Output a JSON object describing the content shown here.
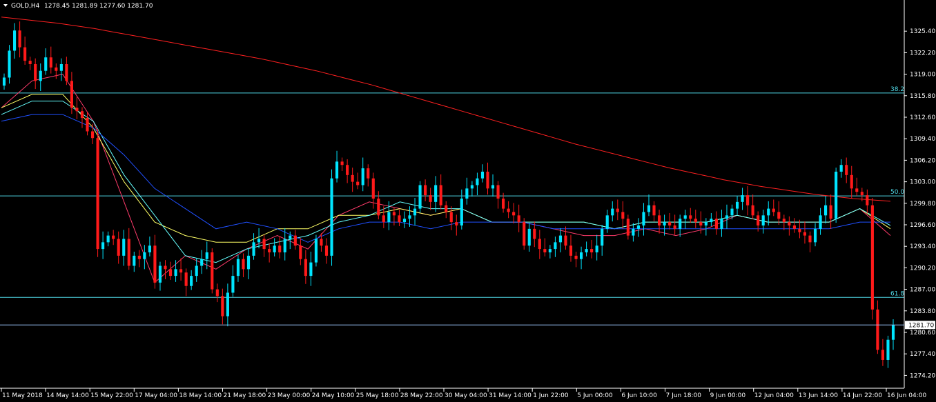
{
  "header": {
    "symbol": "GOLD,H4",
    "ohlc": "1278.45 1281.89 1277.60 1281.70"
  },
  "colors": {
    "background": "#000000",
    "bull": "#00e5ff",
    "bear": "#ff1a1a",
    "axis": "#ffffff",
    "fibo": "#4fd8e6",
    "ma_slow": "#ff2020",
    "ma_pink": "#ff3b6b",
    "ma_yellow": "#ffff66",
    "ma_cyan": "#66ffff",
    "ma_blue": "#2050ff",
    "price_line": "#a0c8ff"
  },
  "chart_data": {
    "type": "candlestick",
    "ylim": [
      1272.6,
      1328.6
    ],
    "y_ticks": [
      "1325.40",
      "1322.20",
      "1319.00",
      "1315.80",
      "1312.60",
      "1309.40",
      "1306.20",
      "1303.00",
      "1299.80",
      "1296.60",
      "1293.40",
      "1290.20",
      "1287.00",
      "1283.80",
      "1280.60",
      "1277.40",
      "1274.20"
    ],
    "x_ticks": [
      "11 May 2018",
      "14 May 14:00",
      "15 May 22:00",
      "17 May 04:00",
      "18 May 14:00",
      "21 May 18:00",
      "23 May 00:00",
      "24 May 10:00",
      "25 May 18:00",
      "28 May 22:00",
      "30 May 04:00",
      "31 May 14:00",
      "1 Jun 22:00",
      "5 Jun 00:00",
      "6 Jun 10:00",
      "7 Jun 18:00",
      "9 Jun 00:00",
      "12 Jun 04:00",
      "13 Jun 14:00",
      "14 Jun 22:00",
      "16 Jun 04:00"
    ],
    "current_price": "1281.70",
    "fibonacci_levels": [
      {
        "label": "38.2",
        "price": 1316.2
      },
      {
        "label": "50.0",
        "price": 1300.9
      },
      {
        "label": "61.8",
        "price": 1285.8
      }
    ],
    "candles_close": [
      1318.5,
      1322.5,
      1325.5,
      1323.0,
      1321.0,
      1320.5,
      1318.0,
      1319.5,
      1321.5,
      1320.0,
      1319.5,
      1320.5,
      1318.0,
      1314.0,
      1313.5,
      1312.5,
      1310.5,
      1309.5,
      1293.0,
      1294.0,
      1295.0,
      1294.5,
      1292.0,
      1294.5,
      1290.5,
      1292.0,
      1291.5,
      1292.5,
      1293.5,
      1288.0,
      1290.5,
      1290.0,
      1289.0,
      1290.0,
      1289.5,
      1287.5,
      1289.0,
      1290.5,
      1291.5,
      1292.5,
      1287.0,
      1286.0,
      1283.0,
      1286.5,
      1289.0,
      1291.5,
      1290.0,
      1292.0,
      1294.0,
      1294.5,
      1293.0,
      1292.5,
      1293.5,
      1292.5,
      1294.5,
      1295.0,
      1293.5,
      1291.5,
      1289.0,
      1291.0,
      1294.5,
      1293.5,
      1292.0,
      1303.5,
      1306.0,
      1305.5,
      1304.0,
      1303.0,
      1302.5,
      1305.0,
      1303.5,
      1300.5,
      1298.0,
      1297.0,
      1298.5,
      1298.0,
      1297.0,
      1297.5,
      1298.0,
      1299.0,
      1302.5,
      1301.0,
      1300.0,
      1302.5,
      1299.5,
      1298.5,
      1297.0,
      1296.5,
      1300.5,
      1302.0,
      1302.5,
      1303.5,
      1304.5,
      1302.0,
      1302.5,
      1300.5,
      1299.0,
      1298.5,
      1298.0,
      1297.0,
      1293.5,
      1296.0,
      1294.5,
      1293.0,
      1292.5,
      1293.0,
      1294.0,
      1295.0,
      1293.5,
      1292.0,
      1291.5,
      1292.5,
      1293.0,
      1292.5,
      1293.5,
      1296.0,
      1298.0,
      1299.0,
      1298.5,
      1297.5,
      1295.0,
      1296.0,
      1296.5,
      1298.5,
      1299.5,
      1298.0,
      1296.5,
      1297.0,
      1296.5,
      1296.0,
      1297.5,
      1298.0,
      1297.5,
      1297.0,
      1296.5,
      1297.0,
      1297.5,
      1296.0,
      1297.5,
      1298.0,
      1299.0,
      1300.0,
      1301.0,
      1299.5,
      1298.0,
      1296.5,
      1298.0,
      1299.0,
      1298.5,
      1297.5,
      1297.0,
      1296.5,
      1296.0,
      1295.5,
      1295.0,
      1294.0,
      1296.0,
      1298.0,
      1299.5,
      1297.5,
      1304.5,
      1305.5,
      1304.0,
      1302.0,
      1301.5,
      1301.0,
      1299.5,
      1284.0,
      1278.0,
      1276.5,
      1279.5,
      1281.7
    ],
    "series": [
      {
        "name": "",
        "color": "#ff2020",
        "values": [
          1327.5,
          1327.2,
          1326.9,
          1326.6,
          1326.2,
          1325.8,
          1325.3,
          1324.8,
          1324.3,
          1323.8,
          1323.3,
          1322.8,
          1322.3,
          1321.8,
          1321.3,
          1320.7,
          1320.1,
          1319.5,
          1318.8,
          1318.1,
          1317.4,
          1316.6,
          1315.8,
          1315.0,
          1314.2,
          1313.4,
          1312.6,
          1311.8,
          1311.0,
          1310.2,
          1309.4,
          1308.6,
          1307.9,
          1307.2,
          1306.5,
          1305.8,
          1305.1,
          1304.5,
          1303.9,
          1303.3,
          1302.8,
          1302.3,
          1301.9,
          1301.5,
          1301.1,
          1300.8,
          1300.5,
          1300.3,
          1300.1
        ]
      },
      {
        "name": "",
        "color": "#ff3b6b",
        "values": [
          1314,
          1318,
          1319,
          1312,
          1300,
          1288,
          1292,
          1290,
          1293,
          1295,
          1293,
          1298,
          1300,
          1299,
          1298,
          1299,
          1297,
          1297,
          1296,
          1295,
          1295,
          1296,
          1295,
          1296,
          1298,
          1297,
          1297,
          1297,
          1299,
          1295
        ]
      },
      {
        "name": "",
        "color": "#ffff66",
        "values": [
          1314,
          1316,
          1316,
          1311,
          1303,
          1297,
          1295,
          1294,
          1294,
          1296,
          1296,
          1298,
          1298,
          1299,
          1298,
          1299,
          1297,
          1297,
          1297,
          1297,
          1296,
          1297,
          1297,
          1297,
          1298,
          1297,
          1297,
          1297,
          1299,
          1296
        ]
      },
      {
        "name": "",
        "color": "#66ffff",
        "values": [
          1313,
          1315,
          1315,
          1312,
          1304,
          1298,
          1292,
          1291,
          1293,
          1294,
          1295,
          1297,
          1298,
          1300,
          1299,
          1299,
          1297,
          1297,
          1297,
          1297,
          1296,
          1297,
          1297,
          1297,
          1298,
          1297,
          1297,
          1297,
          1299,
          1296.5
        ]
      },
      {
        "name": "",
        "color": "#2050ff",
        "values": [
          1312,
          1313,
          1313,
          1311,
          1307,
          1302,
          1299,
          1296,
          1297,
          1296,
          1294,
          1296,
          1297,
          1297,
          1296,
          1297,
          1297,
          1297,
          1296,
          1296,
          1296,
          1296,
          1296,
          1296,
          1296,
          1296,
          1296,
          1296,
          1297,
          1297
        ]
      }
    ]
  }
}
